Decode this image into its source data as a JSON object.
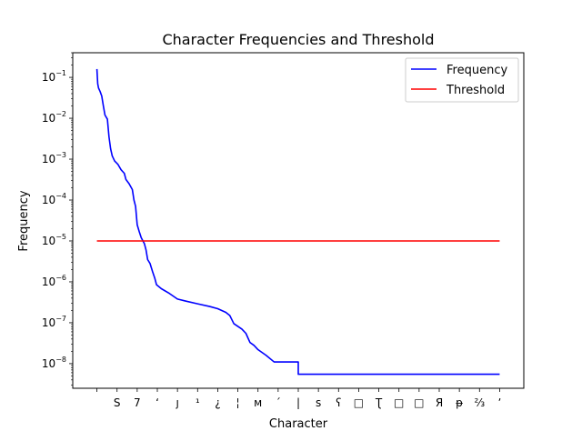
{
  "chart_data": {
    "type": "line",
    "title": "Character Frequencies and Threshold",
    "xlabel": "Character",
    "ylabel": "Frequency",
    "yscale": "log",
    "ylim": [
      2.5e-09,
      0.4
    ],
    "xlim": [
      -0.06,
      1.06
    ],
    "x_ticks": [
      "",
      "S",
      "7",
      "‘",
      "ȷ",
      "¹",
      "¿",
      "¦",
      "ᴍ",
      "ˊ",
      "|",
      "ꜱ",
      "ʕ",
      "□",
      "Ʈ",
      "□",
      "□",
      "Я",
      "ᵽ",
      "⅔",
      "ʼ"
    ],
    "y_ticks": [
      {
        "value": 1e-08,
        "base": "10",
        "exp": "−8"
      },
      {
        "value": 1e-07,
        "base": "10",
        "exp": "−7"
      },
      {
        "value": 1e-06,
        "base": "10",
        "exp": "−6"
      },
      {
        "value": 1e-05,
        "base": "10",
        "exp": "−5"
      },
      {
        "value": 0.0001,
        "base": "10",
        "exp": "−4"
      },
      {
        "value": 0.001,
        "base": "10",
        "exp": "−3"
      },
      {
        "value": 0.01,
        "base": "10",
        "exp": "−2"
      },
      {
        "value": 0.1,
        "base": "10",
        "exp": "−1"
      }
    ],
    "legend": {
      "position": "top-right"
    },
    "series": [
      {
        "name": "Frequency",
        "color": "#0000ff",
        "points": [
          [
            0.0,
            0.16
          ],
          [
            0.002,
            0.07
          ],
          [
            0.004,
            0.055
          ],
          [
            0.008,
            0.045
          ],
          [
            0.012,
            0.035
          ],
          [
            0.016,
            0.02
          ],
          [
            0.02,
            0.012
          ],
          [
            0.026,
            0.0095
          ],
          [
            0.03,
            0.0035
          ],
          [
            0.034,
            0.0018
          ],
          [
            0.038,
            0.0012
          ],
          [
            0.044,
            0.0009
          ],
          [
            0.052,
            0.00075
          ],
          [
            0.06,
            0.00055
          ],
          [
            0.068,
            0.00045
          ],
          [
            0.072,
            0.00032
          ],
          [
            0.08,
            0.00025
          ],
          [
            0.088,
            0.00018
          ],
          [
            0.092,
            0.0001
          ],
          [
            0.096,
            7e-05
          ],
          [
            0.1,
            2.5e-05
          ],
          [
            0.105,
            1.7e-05
          ],
          [
            0.11,
            1.2e-05
          ],
          [
            0.118,
            8.5e-06
          ],
          [
            0.122,
            6e-06
          ],
          [
            0.126,
            3.5e-06
          ],
          [
            0.132,
            2.8e-06
          ],
          [
            0.138,
            1.8e-06
          ],
          [
            0.144,
            1.2e-06
          ],
          [
            0.148,
            8.5e-07
          ],
          [
            0.16,
            6.8e-07
          ],
          [
            0.18,
            5.2e-07
          ],
          [
            0.2,
            3.8e-07
          ],
          [
            0.22,
            3.4e-07
          ],
          [
            0.25,
            2.9e-07
          ],
          [
            0.28,
            2.5e-07
          ],
          [
            0.3,
            2.2e-07
          ],
          [
            0.32,
            1.8e-07
          ],
          [
            0.33,
            1.5e-07
          ],
          [
            0.34,
            9.5e-08
          ],
          [
            0.36,
            7e-08
          ],
          [
            0.37,
            5.5e-08
          ],
          [
            0.38,
            3.3e-08
          ],
          [
            0.39,
            2.8e-08
          ],
          [
            0.4,
            2.2e-08
          ],
          [
            0.42,
            1.6e-08
          ],
          [
            0.44,
            1.1e-08
          ],
          [
            0.5,
            1.1e-08
          ],
          [
            0.5,
            5.5e-09
          ],
          [
            1.0,
            5.5e-09
          ]
        ]
      },
      {
        "name": "Threshold",
        "color": "#ff0000",
        "points": [
          [
            0.0,
            1e-05
          ],
          [
            1.0,
            1e-05
          ]
        ]
      }
    ]
  }
}
